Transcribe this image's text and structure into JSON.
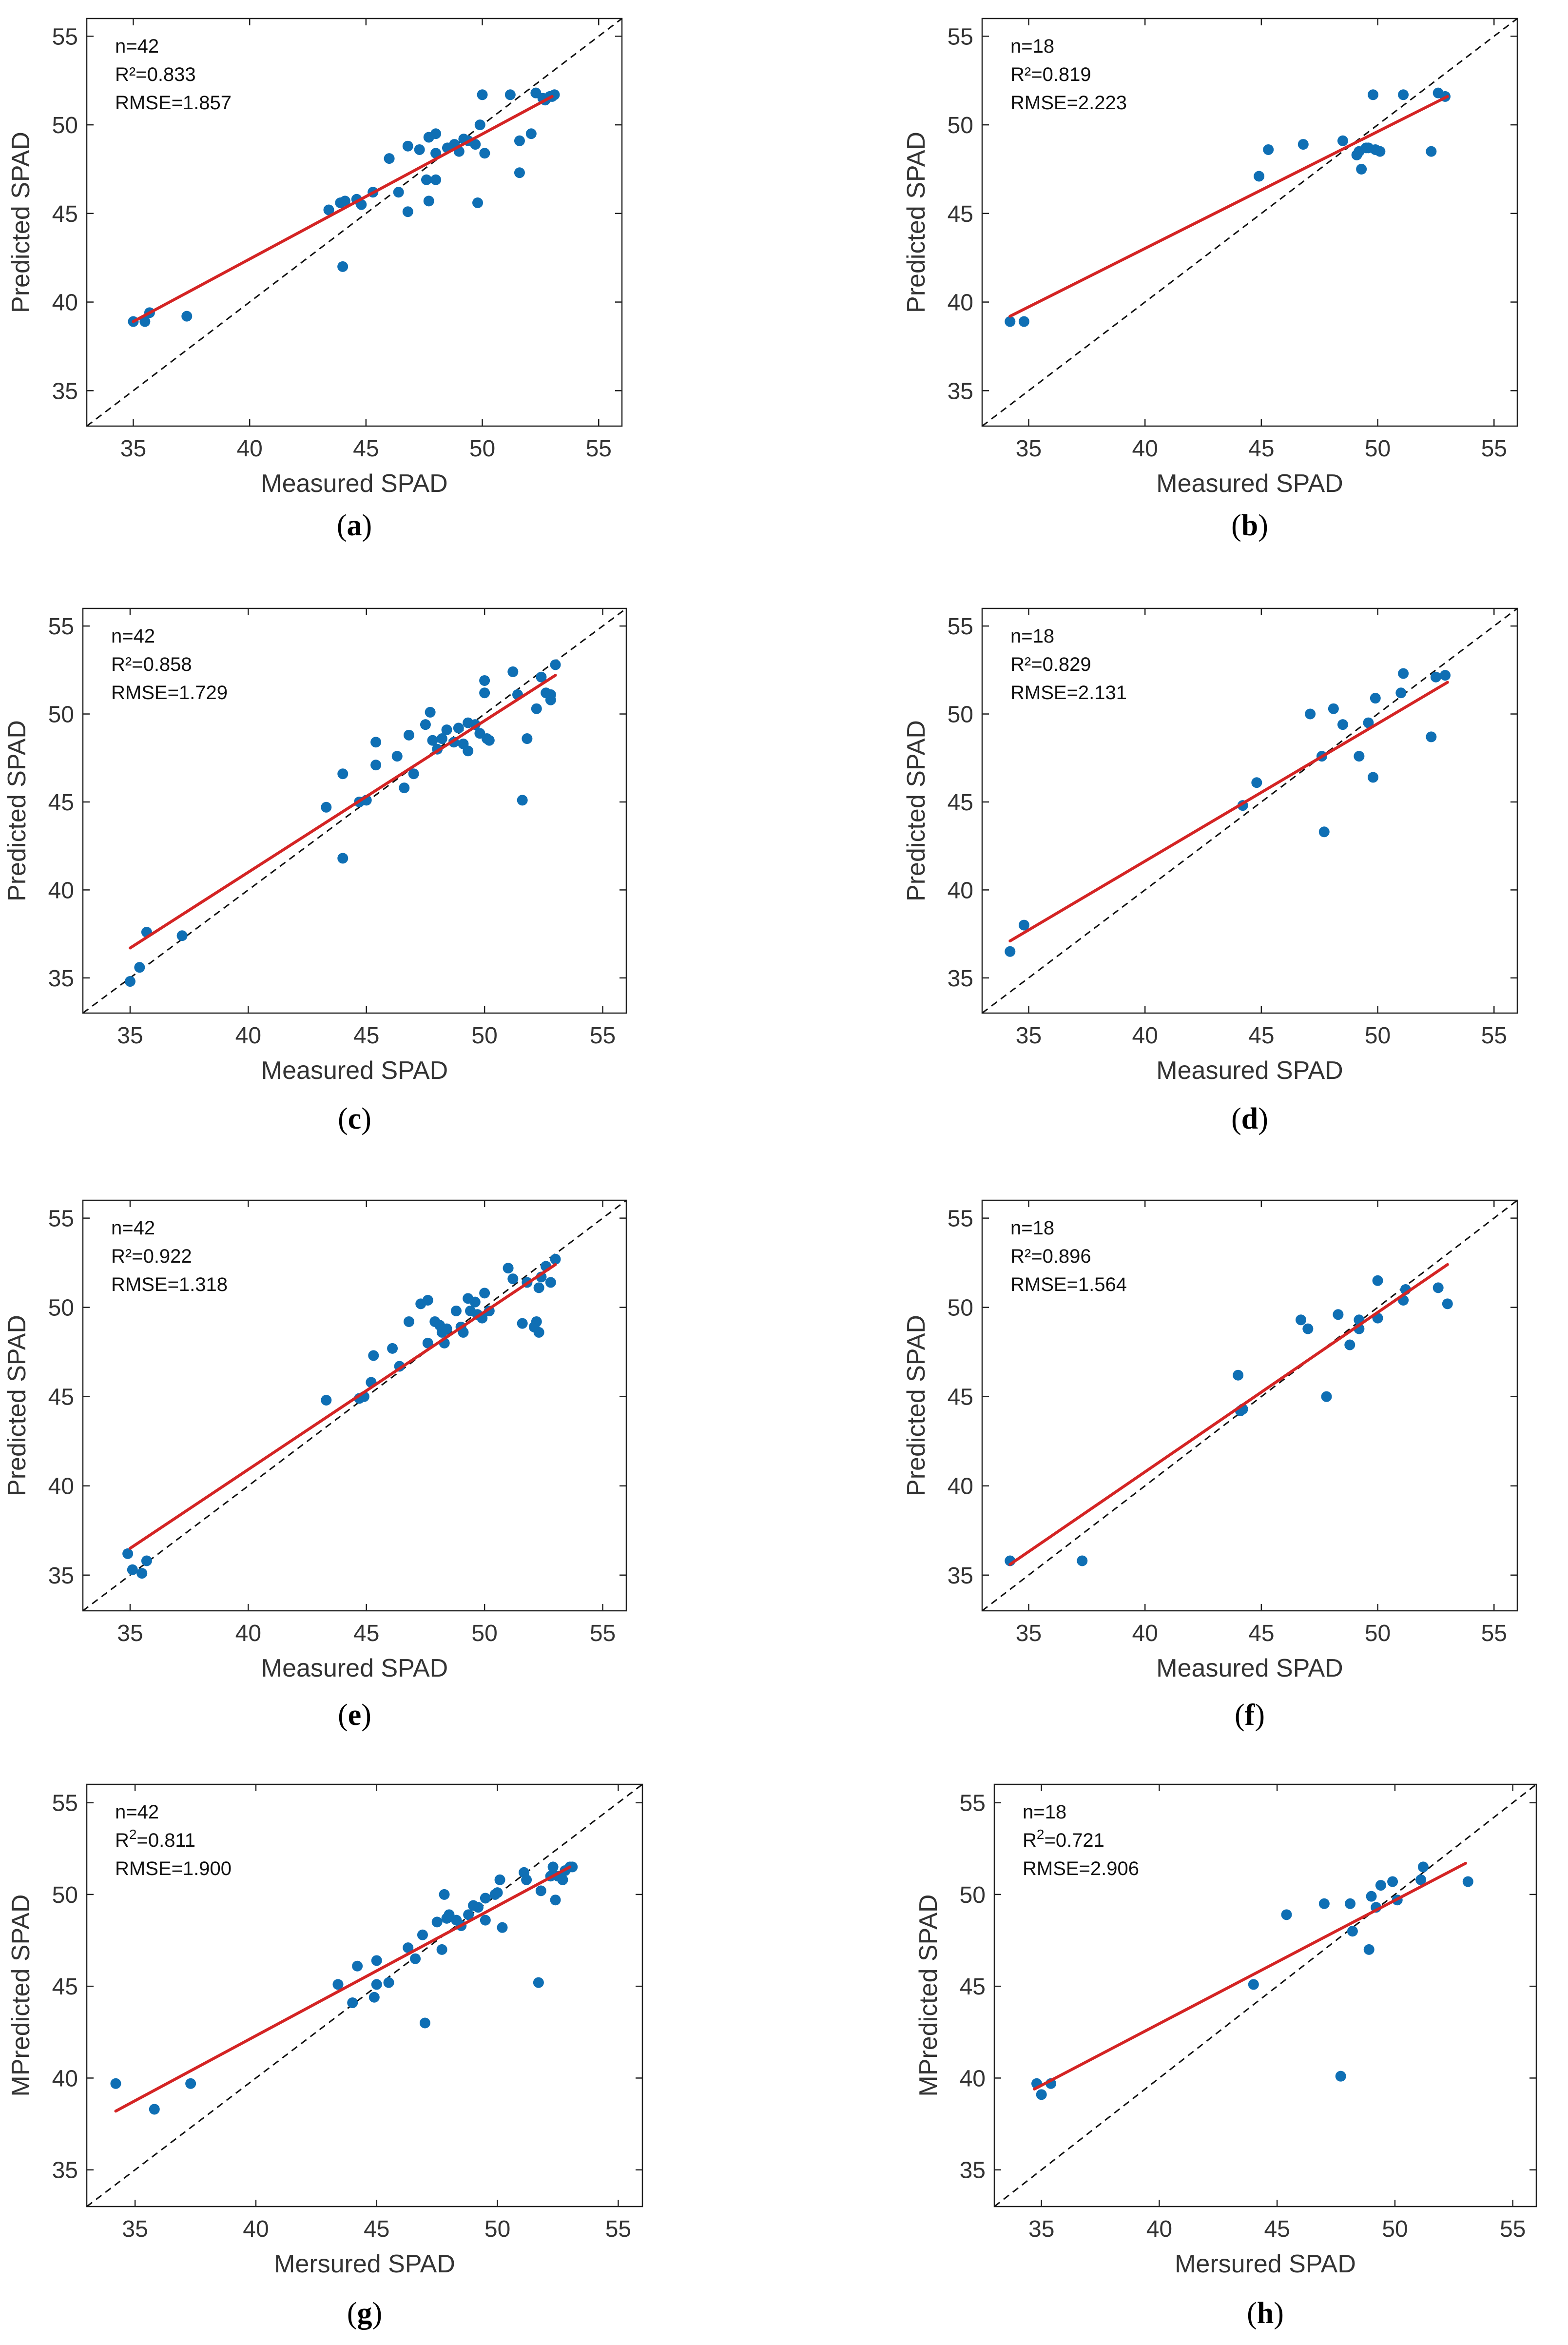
{
  "figure": {
    "panels_order": [
      "a",
      "b",
      "c",
      "d",
      "e",
      "f",
      "g",
      "h"
    ]
  },
  "chart_data": [
    {
      "id": "a",
      "caption_letter": "a",
      "type": "scatter",
      "xlabel": "Measured SPAD",
      "ylabel": "Predicted SPAD",
      "xlim": [
        33,
        56
      ],
      "ylim": [
        33,
        56
      ],
      "xticks": [
        35,
        40,
        45,
        50,
        55
      ],
      "yticks": [
        35,
        40,
        45,
        50,
        55
      ],
      "grid": false,
      "stats": [
        "n=42",
        "R²=0.833",
        "RMSE=1.857"
      ],
      "fit_line": {
        "x": [
          35.0,
          53.0
        ],
        "y": [
          38.9,
          51.6
        ],
        "color": "#d42424"
      },
      "identity_line": true,
      "points_color": "#0f6fb4",
      "points": [
        [
          35.0,
          38.9
        ],
        [
          35.5,
          38.9
        ],
        [
          35.7,
          39.4
        ],
        [
          37.3,
          39.2
        ],
        [
          43.4,
          45.2
        ],
        [
          43.9,
          45.6
        ],
        [
          44.1,
          45.7
        ],
        [
          44.6,
          45.8
        ],
        [
          44.8,
          45.5
        ],
        [
          45.3,
          46.2
        ],
        [
          44.0,
          42.0
        ],
        [
          46.0,
          48.1
        ],
        [
          46.4,
          46.2
        ],
        [
          46.8,
          48.8
        ],
        [
          46.8,
          45.1
        ],
        [
          47.3,
          48.6
        ],
        [
          47.6,
          46.9
        ],
        [
          47.7,
          49.3
        ],
        [
          47.7,
          45.7
        ],
        [
          48.0,
          49.5
        ],
        [
          48.0,
          48.4
        ],
        [
          48.0,
          46.9
        ],
        [
          48.5,
          48.7
        ],
        [
          48.8,
          48.9
        ],
        [
          49.0,
          48.5
        ],
        [
          49.2,
          49.2
        ],
        [
          49.4,
          49.1
        ],
        [
          49.7,
          48.9
        ],
        [
          49.8,
          45.6
        ],
        [
          49.9,
          50.0
        ],
        [
          50.0,
          51.7
        ],
        [
          50.1,
          48.4
        ],
        [
          51.2,
          51.7
        ],
        [
          51.6,
          49.1
        ],
        [
          51.6,
          47.3
        ],
        [
          52.1,
          49.5
        ],
        [
          52.3,
          51.8
        ],
        [
          52.6,
          51.5
        ],
        [
          52.7,
          51.4
        ],
        [
          52.9,
          51.6
        ],
        [
          53.0,
          51.6
        ],
        [
          53.1,
          51.7
        ]
      ]
    },
    {
      "id": "b",
      "caption_letter": "b",
      "type": "scatter",
      "xlabel": "Measured SPAD",
      "ylabel": "Predicted SPAD",
      "xlim": [
        33,
        56
      ],
      "ylim": [
        33,
        56
      ],
      "xticks": [
        35,
        40,
        45,
        50,
        55
      ],
      "yticks": [
        35,
        40,
        45,
        50,
        55
      ],
      "grid": false,
      "stats": [
        "n=18",
        "R²=0.819",
        "RMSE=2.223"
      ],
      "fit_line": {
        "x": [
          34.2,
          53.0
        ],
        "y": [
          39.2,
          51.6
        ],
        "color": "#d42424"
      },
      "identity_line": true,
      "points_color": "#0f6fb4",
      "points": [
        [
          34.2,
          38.9
        ],
        [
          34.8,
          38.9
        ],
        [
          44.9,
          47.1
        ],
        [
          45.3,
          48.6
        ],
        [
          46.8,
          48.9
        ],
        [
          48.5,
          49.1
        ],
        [
          49.1,
          48.3
        ],
        [
          49.2,
          48.5
        ],
        [
          49.3,
          47.5
        ],
        [
          49.6,
          48.7
        ],
        [
          49.8,
          51.7
        ],
        [
          50.1,
          48.5
        ],
        [
          51.1,
          51.7
        ],
        [
          52.3,
          48.5
        ],
        [
          52.6,
          51.8
        ],
        [
          52.9,
          51.6
        ],
        [
          49.5,
          48.7
        ],
        [
          49.9,
          48.6
        ]
      ]
    },
    {
      "id": "c",
      "caption_letter": "c",
      "type": "scatter",
      "xlabel": "Measured SPAD",
      "ylabel": "Predicted SPAD",
      "xlim": [
        33,
        56
      ],
      "ylim": [
        33,
        56
      ],
      "xticks": [
        35,
        40,
        45,
        50,
        55
      ],
      "yticks": [
        35,
        40,
        45,
        50,
        55
      ],
      "grid": false,
      "stats": [
        "n=42",
        "R²=0.858",
        "RMSE=1.729"
      ],
      "fit_line": {
        "x": [
          35.0,
          53.0
        ],
        "y": [
          36.7,
          52.2
        ],
        "color": "#d42424"
      },
      "identity_line": true,
      "points_color": "#0f6fb4",
      "points": [
        [
          35.0,
          34.8
        ],
        [
          35.4,
          35.6
        ],
        [
          35.7,
          37.6
        ],
        [
          37.2,
          37.4
        ],
        [
          43.3,
          44.7
        ],
        [
          44.0,
          46.6
        ],
        [
          44.0,
          41.8
        ],
        [
          44.7,
          45.0
        ],
        [
          45.0,
          45.1
        ],
        [
          45.4,
          48.4
        ],
        [
          45.4,
          47.1
        ],
        [
          46.3,
          47.6
        ],
        [
          46.6,
          45.8
        ],
        [
          46.8,
          48.8
        ],
        [
          47.0,
          46.6
        ],
        [
          47.5,
          49.4
        ],
        [
          47.7,
          50.1
        ],
        [
          47.8,
          48.5
        ],
        [
          48.0,
          48.0
        ],
        [
          48.2,
          48.6
        ],
        [
          48.4,
          49.1
        ],
        [
          48.7,
          48.4
        ],
        [
          48.9,
          49.2
        ],
        [
          49.1,
          48.3
        ],
        [
          49.3,
          49.5
        ],
        [
          49.3,
          47.9
        ],
        [
          49.6,
          49.4
        ],
        [
          49.8,
          48.9
        ],
        [
          50.0,
          51.9
        ],
        [
          50.0,
          51.2
        ],
        [
          50.1,
          48.6
        ],
        [
          50.2,
          48.5
        ],
        [
          51.2,
          52.4
        ],
        [
          51.4,
          51.1
        ],
        [
          51.6,
          45.1
        ],
        [
          51.8,
          48.6
        ],
        [
          52.2,
          50.3
        ],
        [
          52.4,
          52.1
        ],
        [
          52.6,
          51.2
        ],
        [
          52.8,
          51.1
        ],
        [
          52.8,
          50.8
        ],
        [
          53.0,
          52.8
        ]
      ]
    },
    {
      "id": "d",
      "caption_letter": "d",
      "type": "scatter",
      "xlabel": "Measured SPAD",
      "ylabel": "Predicted SPAD",
      "xlim": [
        33,
        56
      ],
      "ylim": [
        33,
        56
      ],
      "xticks": [
        35,
        40,
        45,
        50,
        55
      ],
      "yticks": [
        35,
        40,
        45,
        50,
        55
      ],
      "grid": false,
      "stats": [
        "n=18",
        "R²=0.829",
        "RMSE=2.131"
      ],
      "fit_line": {
        "x": [
          34.2,
          53.0
        ],
        "y": [
          37.1,
          51.8
        ],
        "color": "#d42424"
      },
      "identity_line": true,
      "points_color": "#0f6fb4",
      "points": [
        [
          34.2,
          36.5
        ],
        [
          34.8,
          38.0
        ],
        [
          44.2,
          44.8
        ],
        [
          44.8,
          46.1
        ],
        [
          47.1,
          50.0
        ],
        [
          47.6,
          47.6
        ],
        [
          47.7,
          43.3
        ],
        [
          48.1,
          50.3
        ],
        [
          48.5,
          49.4
        ],
        [
          49.2,
          47.6
        ],
        [
          49.6,
          49.5
        ],
        [
          49.8,
          46.4
        ],
        [
          49.9,
          50.9
        ],
        [
          51.0,
          51.2
        ],
        [
          51.1,
          52.3
        ],
        [
          52.3,
          48.7
        ],
        [
          52.5,
          52.1
        ],
        [
          52.9,
          52.2
        ]
      ]
    },
    {
      "id": "e",
      "caption_letter": "e",
      "type": "scatter",
      "xlabel": "Measured SPAD",
      "ylabel": "Predicted SPAD",
      "xlim": [
        33,
        56
      ],
      "ylim": [
        33,
        56
      ],
      "xticks": [
        35,
        40,
        45,
        50,
        55
      ],
      "yticks": [
        35,
        40,
        45,
        50,
        55
      ],
      "grid": false,
      "stats": [
        "n=42",
        "R²=0.922",
        "RMSE=1.318"
      ],
      "fit_line": {
        "x": [
          35.0,
          53.0
        ],
        "y": [
          36.5,
          52.4
        ],
        "color": "#d42424"
      },
      "identity_line": true,
      "points_color": "#0f6fb4",
      "points": [
        [
          34.9,
          36.2
        ],
        [
          35.1,
          35.3
        ],
        [
          35.5,
          35.1
        ],
        [
          35.7,
          35.8
        ],
        [
          43.3,
          44.8
        ],
        [
          44.7,
          44.9
        ],
        [
          44.9,
          45.0
        ],
        [
          45.2,
          45.8
        ],
        [
          45.3,
          47.3
        ],
        [
          46.1,
          47.7
        ],
        [
          46.4,
          46.7
        ],
        [
          46.8,
          49.2
        ],
        [
          47.3,
          50.2
        ],
        [
          47.6,
          50.4
        ],
        [
          47.6,
          48.0
        ],
        [
          47.9,
          49.2
        ],
        [
          48.1,
          49.0
        ],
        [
          48.2,
          48.6
        ],
        [
          48.3,
          48.0
        ],
        [
          48.4,
          48.8
        ],
        [
          48.8,
          49.8
        ],
        [
          49.0,
          48.9
        ],
        [
          49.1,
          48.6
        ],
        [
          49.3,
          50.5
        ],
        [
          49.4,
          49.8
        ],
        [
          49.6,
          50.3
        ],
        [
          49.7,
          49.6
        ],
        [
          49.9,
          49.4
        ],
        [
          50.0,
          50.8
        ],
        [
          50.2,
          49.8
        ],
        [
          51.0,
          52.2
        ],
        [
          51.2,
          51.6
        ],
        [
          51.6,
          49.1
        ],
        [
          51.8,
          51.4
        ],
        [
          52.2,
          49.2
        ],
        [
          52.3,
          48.6
        ],
        [
          52.3,
          51.1
        ],
        [
          52.4,
          51.7
        ],
        [
          52.6,
          52.3
        ],
        [
          52.8,
          51.4
        ],
        [
          53.0,
          52.7
        ],
        [
          52.1,
          48.9
        ]
      ]
    },
    {
      "id": "f",
      "caption_letter": "f",
      "type": "scatter",
      "xlabel": "Measured SPAD",
      "ylabel": "Predicted SPAD",
      "xlim": [
        33,
        56
      ],
      "ylim": [
        33,
        56
      ],
      "xticks": [
        35,
        40,
        45,
        50,
        55
      ],
      "yticks": [
        35,
        40,
        45,
        50,
        55
      ],
      "grid": false,
      "stats": [
        "n=18",
        "R²=0.896",
        "RMSE=1.564"
      ],
      "fit_line": {
        "x": [
          34.2,
          53.0
        ],
        "y": [
          35.6,
          52.4
        ],
        "color": "#d42424"
      },
      "identity_line": true,
      "points_color": "#0f6fb4",
      "points": [
        [
          34.2,
          35.8
        ],
        [
          37.3,
          35.8
        ],
        [
          44.0,
          46.2
        ],
        [
          44.1,
          44.2
        ],
        [
          44.2,
          44.3
        ],
        [
          46.7,
          49.3
        ],
        [
          47.0,
          48.8
        ],
        [
          47.8,
          45.0
        ],
        [
          48.3,
          49.6
        ],
        [
          48.8,
          47.9
        ],
        [
          49.2,
          48.8
        ],
        [
          49.2,
          49.3
        ],
        [
          50.0,
          51.5
        ],
        [
          50.0,
          49.4
        ],
        [
          51.1,
          50.4
        ],
        [
          51.2,
          51.0
        ],
        [
          52.6,
          51.1
        ],
        [
          53.0,
          50.2
        ]
      ]
    },
    {
      "id": "g",
      "caption_letter": "g",
      "type": "scatter",
      "xlabel": "Mersured SPAD",
      "ylabel": "MPredicted SPAD",
      "xlim": [
        33,
        56
      ],
      "ylim": [
        33,
        56
      ],
      "xticks": [
        35,
        40,
        45,
        50,
        55
      ],
      "yticks": [
        35,
        40,
        45,
        50,
        55
      ],
      "grid": false,
      "stats": [
        "n=42",
        "R",
        "2",
        "=0.811",
        "RMSE=1.900"
      ],
      "fit_line": {
        "x": [
          34.2,
          53.0
        ],
        "y": [
          38.2,
          51.5
        ],
        "color": "#d42424"
      },
      "identity_line": true,
      "points_color": "#0f6fb4",
      "points": [
        [
          34.2,
          39.7
        ],
        [
          35.8,
          38.3
        ],
        [
          37.3,
          39.7
        ],
        [
          43.4,
          45.1
        ],
        [
          44.0,
          44.1
        ],
        [
          44.2,
          46.1
        ],
        [
          44.9,
          44.4
        ],
        [
          45.0,
          46.4
        ],
        [
          45.0,
          45.1
        ],
        [
          45.5,
          45.2
        ],
        [
          46.3,
          47.1
        ],
        [
          46.6,
          46.5
        ],
        [
          46.9,
          47.8
        ],
        [
          47.0,
          43.0
        ],
        [
          47.5,
          48.5
        ],
        [
          47.7,
          47.0
        ],
        [
          47.8,
          50.0
        ],
        [
          48.0,
          48.9
        ],
        [
          48.3,
          48.6
        ],
        [
          48.5,
          48.3
        ],
        [
          48.8,
          48.9
        ],
        [
          49.2,
          49.3
        ],
        [
          49.5,
          49.8
        ],
        [
          49.5,
          48.6
        ],
        [
          49.9,
          50.0
        ],
        [
          50.1,
          50.8
        ],
        [
          50.2,
          48.2
        ],
        [
          51.1,
          51.2
        ],
        [
          51.2,
          50.8
        ],
        [
          51.7,
          45.2
        ],
        [
          51.8,
          50.2
        ],
        [
          52.2,
          51.0
        ],
        [
          52.3,
          51.5
        ],
        [
          52.4,
          49.7
        ],
        [
          52.5,
          51.0
        ],
        [
          52.7,
          50.8
        ],
        [
          53.0,
          51.5
        ],
        [
          53.1,
          51.5
        ],
        [
          50.0,
          50.1
        ],
        [
          49.0,
          49.4
        ],
        [
          47.9,
          48.7
        ],
        [
          52.8,
          51.3
        ]
      ]
    },
    {
      "id": "h",
      "caption_letter": "h",
      "type": "scatter",
      "xlabel": "Mersured SPAD",
      "ylabel": "MPredicted SPAD",
      "xlim": [
        33,
        56
      ],
      "ylim": [
        33,
        56
      ],
      "xticks": [
        35,
        40,
        45,
        50,
        55
      ],
      "yticks": [
        35,
        40,
        45,
        50,
        55
      ],
      "grid": false,
      "stats": [
        "n=18",
        "R",
        "2",
        "=0.721",
        "RMSE=2.906"
      ],
      "fit_line": {
        "x": [
          34.7,
          53.0
        ],
        "y": [
          39.4,
          51.7
        ],
        "color": "#d42424"
      },
      "identity_line": true,
      "points_color": "#0f6fb4",
      "points": [
        [
          34.8,
          39.7
        ],
        [
          35.0,
          39.1
        ],
        [
          35.4,
          39.7
        ],
        [
          44.0,
          45.1
        ],
        [
          45.4,
          48.9
        ],
        [
          47.0,
          49.5
        ],
        [
          47.7,
          40.1
        ],
        [
          48.1,
          49.5
        ],
        [
          48.2,
          48.0
        ],
        [
          48.9,
          47.0
        ],
        [
          49.0,
          49.9
        ],
        [
          49.2,
          49.3
        ],
        [
          49.4,
          50.5
        ],
        [
          49.9,
          50.7
        ],
        [
          50.1,
          49.7
        ],
        [
          51.1,
          50.8
        ],
        [
          51.2,
          51.5
        ],
        [
          53.1,
          50.7
        ]
      ]
    }
  ]
}
